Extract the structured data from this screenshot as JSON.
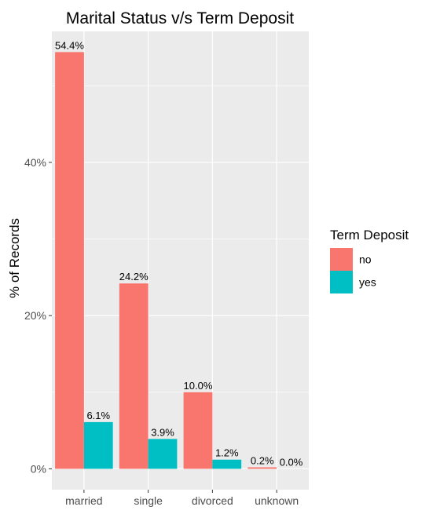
{
  "chart_data": {
    "type": "bar",
    "title": "Marital Status v/s Term Deposit",
    "xlabel": "",
    "ylabel": "% of Records",
    "categories": [
      "married",
      "single",
      "divorced",
      "unknown"
    ],
    "series": [
      {
        "name": "no",
        "color": "#F8766D",
        "values": [
          54.4,
          24.2,
          10.0,
          0.2
        ],
        "labels": [
          "54.4%",
          "24.2%",
          "10.0%",
          "0.2%"
        ]
      },
      {
        "name": "yes",
        "color": "#00BFC4",
        "values": [
          6.1,
          3.9,
          1.2,
          0.0
        ],
        "labels": [
          "6.1%",
          "3.9%",
          "1.2%",
          "0.0%"
        ]
      }
    ],
    "yticks": [
      0,
      20,
      40
    ],
    "ytick_labels": [
      "0%",
      "20%",
      "40%"
    ],
    "ylim": [
      -2.72,
      57.1
    ],
    "grid": true,
    "legend": {
      "title": "Term Deposit",
      "position": "right"
    },
    "panel_background": "#EBEBEB",
    "grid_color": "#FFFFFF"
  }
}
